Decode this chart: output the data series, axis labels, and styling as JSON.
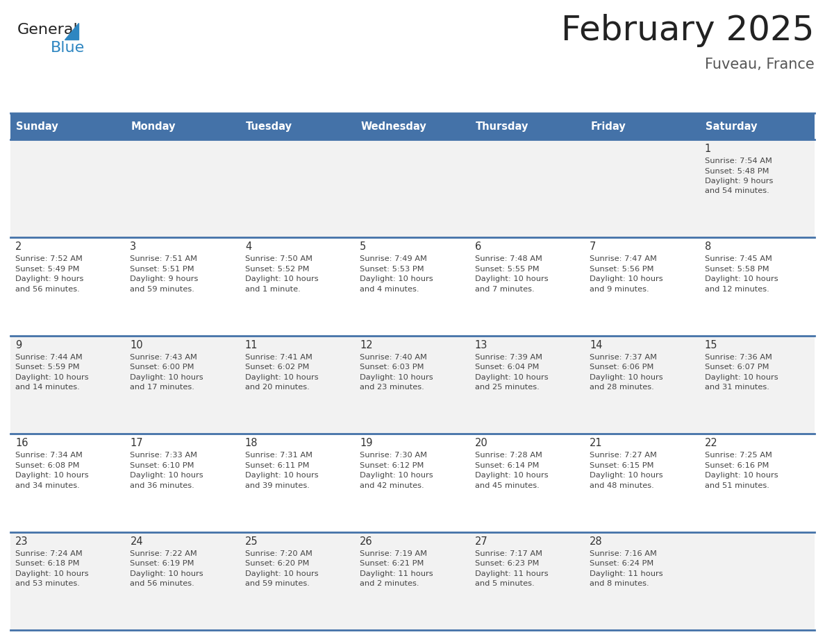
{
  "title": "February 2025",
  "subtitle": "Fuveau, France",
  "days_of_week": [
    "Sunday",
    "Monday",
    "Tuesday",
    "Wednesday",
    "Thursday",
    "Friday",
    "Saturday"
  ],
  "header_bg": "#4472A8",
  "header_text": "#FFFFFF",
  "row_bg_odd": "#F2F2F2",
  "row_bg_even": "#FFFFFF",
  "border_color": "#4472A8",
  "day_number_color": "#333333",
  "text_color": "#444444",
  "title_color": "#222222",
  "subtitle_color": "#555555",
  "logo_general_color": "#222222",
  "logo_blue_color": "#2E86C1",
  "fig_width": 11.88,
  "fig_height": 9.18,
  "dpi": 100,
  "calendar_data": [
    {
      "day": 1,
      "col": 6,
      "row": 0,
      "sunrise": "7:54 AM",
      "sunset": "5:48 PM",
      "daylight": "9 hours and 54 minutes."
    },
    {
      "day": 2,
      "col": 0,
      "row": 1,
      "sunrise": "7:52 AM",
      "sunset": "5:49 PM",
      "daylight": "9 hours and 56 minutes."
    },
    {
      "day": 3,
      "col": 1,
      "row": 1,
      "sunrise": "7:51 AM",
      "sunset": "5:51 PM",
      "daylight": "9 hours and 59 minutes."
    },
    {
      "day": 4,
      "col": 2,
      "row": 1,
      "sunrise": "7:50 AM",
      "sunset": "5:52 PM",
      "daylight": "10 hours and 1 minute."
    },
    {
      "day": 5,
      "col": 3,
      "row": 1,
      "sunrise": "7:49 AM",
      "sunset": "5:53 PM",
      "daylight": "10 hours and 4 minutes."
    },
    {
      "day": 6,
      "col": 4,
      "row": 1,
      "sunrise": "7:48 AM",
      "sunset": "5:55 PM",
      "daylight": "10 hours and 7 minutes."
    },
    {
      "day": 7,
      "col": 5,
      "row": 1,
      "sunrise": "7:47 AM",
      "sunset": "5:56 PM",
      "daylight": "10 hours and 9 minutes."
    },
    {
      "day": 8,
      "col": 6,
      "row": 1,
      "sunrise": "7:45 AM",
      "sunset": "5:58 PM",
      "daylight": "10 hours and 12 minutes."
    },
    {
      "day": 9,
      "col": 0,
      "row": 2,
      "sunrise": "7:44 AM",
      "sunset": "5:59 PM",
      "daylight": "10 hours and 14 minutes."
    },
    {
      "day": 10,
      "col": 1,
      "row": 2,
      "sunrise": "7:43 AM",
      "sunset": "6:00 PM",
      "daylight": "10 hours and 17 minutes."
    },
    {
      "day": 11,
      "col": 2,
      "row": 2,
      "sunrise": "7:41 AM",
      "sunset": "6:02 PM",
      "daylight": "10 hours and 20 minutes."
    },
    {
      "day": 12,
      "col": 3,
      "row": 2,
      "sunrise": "7:40 AM",
      "sunset": "6:03 PM",
      "daylight": "10 hours and 23 minutes."
    },
    {
      "day": 13,
      "col": 4,
      "row": 2,
      "sunrise": "7:39 AM",
      "sunset": "6:04 PM",
      "daylight": "10 hours and 25 minutes."
    },
    {
      "day": 14,
      "col": 5,
      "row": 2,
      "sunrise": "7:37 AM",
      "sunset": "6:06 PM",
      "daylight": "10 hours and 28 minutes."
    },
    {
      "day": 15,
      "col": 6,
      "row": 2,
      "sunrise": "7:36 AM",
      "sunset": "6:07 PM",
      "daylight": "10 hours and 31 minutes."
    },
    {
      "day": 16,
      "col": 0,
      "row": 3,
      "sunrise": "7:34 AM",
      "sunset": "6:08 PM",
      "daylight": "10 hours and 34 minutes."
    },
    {
      "day": 17,
      "col": 1,
      "row": 3,
      "sunrise": "7:33 AM",
      "sunset": "6:10 PM",
      "daylight": "10 hours and 36 minutes."
    },
    {
      "day": 18,
      "col": 2,
      "row": 3,
      "sunrise": "7:31 AM",
      "sunset": "6:11 PM",
      "daylight": "10 hours and 39 minutes."
    },
    {
      "day": 19,
      "col": 3,
      "row": 3,
      "sunrise": "7:30 AM",
      "sunset": "6:12 PM",
      "daylight": "10 hours and 42 minutes."
    },
    {
      "day": 20,
      "col": 4,
      "row": 3,
      "sunrise": "7:28 AM",
      "sunset": "6:14 PM",
      "daylight": "10 hours and 45 minutes."
    },
    {
      "day": 21,
      "col": 5,
      "row": 3,
      "sunrise": "7:27 AM",
      "sunset": "6:15 PM",
      "daylight": "10 hours and 48 minutes."
    },
    {
      "day": 22,
      "col": 6,
      "row": 3,
      "sunrise": "7:25 AM",
      "sunset": "6:16 PM",
      "daylight": "10 hours and 51 minutes."
    },
    {
      "day": 23,
      "col": 0,
      "row": 4,
      "sunrise": "7:24 AM",
      "sunset": "6:18 PM",
      "daylight": "10 hours and 53 minutes."
    },
    {
      "day": 24,
      "col": 1,
      "row": 4,
      "sunrise": "7:22 AM",
      "sunset": "6:19 PM",
      "daylight": "10 hours and 56 minutes."
    },
    {
      "day": 25,
      "col": 2,
      "row": 4,
      "sunrise": "7:20 AM",
      "sunset": "6:20 PM",
      "daylight": "10 hours and 59 minutes."
    },
    {
      "day": 26,
      "col": 3,
      "row": 4,
      "sunrise": "7:19 AM",
      "sunset": "6:21 PM",
      "daylight": "11 hours and 2 minutes."
    },
    {
      "day": 27,
      "col": 4,
      "row": 4,
      "sunrise": "7:17 AM",
      "sunset": "6:23 PM",
      "daylight": "11 hours and 5 minutes."
    },
    {
      "day": 28,
      "col": 5,
      "row": 4,
      "sunrise": "7:16 AM",
      "sunset": "6:24 PM",
      "daylight": "11 hours and 8 minutes."
    }
  ],
  "num_rows": 5,
  "num_cols": 7
}
